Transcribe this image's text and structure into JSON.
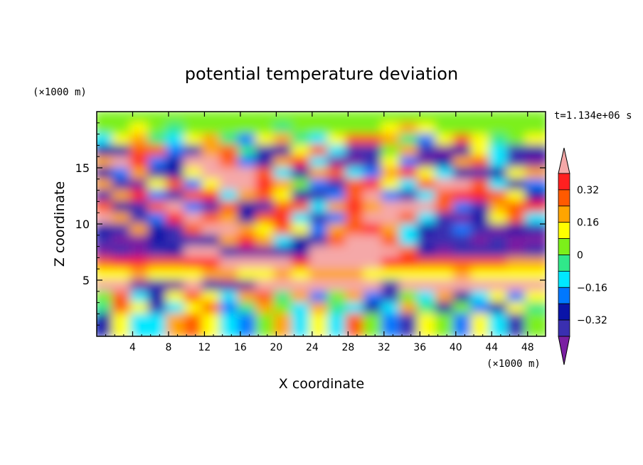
{
  "chart_data": {
    "type": "heatmap",
    "title": "potential temperature deviation",
    "xlabel": "X coordinate",
    "ylabel": "Z coordinate",
    "x_unit": "(×1000 m)",
    "y_unit": "(×1000 m)",
    "time_label": "t=1.134e+06 s",
    "xlim": [
      0,
      50
    ],
    "ylim": [
      0,
      20
    ],
    "x_ticks": [
      4,
      8,
      12,
      16,
      20,
      24,
      28,
      32,
      36,
      40,
      44,
      48
    ],
    "y_ticks": [
      5,
      10,
      15
    ],
    "grid": false,
    "colorbar": {
      "position": "right",
      "levels": [
        -0.4,
        -0.32,
        -0.24,
        -0.16,
        -0.08,
        0,
        0.08,
        0.16,
        0.24,
        0.32,
        0.4
      ],
      "tick_labels": [
        "0.32",
        "0.16",
        "0",
        "−0.16",
        "−0.32"
      ],
      "tick_values": [
        0.32,
        0.16,
        0,
        -0.16,
        -0.32
      ],
      "colors": [
        "#7a1fa2",
        "#3a2fb0",
        "#0a14a8",
        "#0078ff",
        "#00e8ff",
        "#30e88a",
        "#7cf01a",
        "#ffff00",
        "#ffa500",
        "#ff5a00",
        "#ff2020",
        "#f5a8a8"
      ],
      "extend": "both"
    },
    "rows": [
      {
        "z": 19,
        "values": [
          0.05,
          0.05,
          0.04,
          0.06,
          0.03,
          0.02,
          0.05,
          0.06,
          0.04,
          0.05,
          0.02,
          0.03,
          0.05,
          0.06,
          0.04,
          0.05,
          0.03,
          0.02,
          0.04,
          0.05,
          0.06,
          0.05,
          0.03,
          0.04,
          0.05
        ]
      },
      {
        "z": 18,
        "values": [
          0.02,
          0.06,
          0.1,
          0.04,
          -0.02,
          0.01,
          0.04,
          0.07,
          0.03,
          0.01,
          -0.02,
          0.01,
          0.04,
          0.06,
          0.02,
          0.05,
          0.12,
          0.18,
          0.1,
          0.03,
          0.02,
          0.04,
          0.06,
          0.03,
          0.02
        ]
      },
      {
        "z": 17,
        "values": [
          -0.1,
          0.12,
          0.22,
          -0.06,
          -0.16,
          0.14,
          0.2,
          -0.05,
          -0.18,
          0.1,
          0.22,
          -0.04,
          -0.12,
          0.08,
          0.24,
          0.3,
          0.18,
          -0.06,
          -0.2,
          0.12,
          0.26,
          0.14,
          -0.08,
          0.04,
          0.1
        ]
      },
      {
        "z": 16,
        "values": [
          -0.28,
          -0.3,
          0.24,
          0.3,
          -0.22,
          -0.34,
          0.18,
          0.26,
          -0.08,
          -0.36,
          -0.3,
          0.1,
          0.28,
          -0.12,
          -0.4,
          -0.38,
          0.06,
          0.2,
          -0.34,
          -0.42,
          -0.3,
          0.08,
          -0.1,
          -0.36,
          -0.3
        ]
      },
      {
        "z": 15,
        "values": [
          0.16,
          0.44,
          0.34,
          -0.18,
          -0.3,
          0.42,
          0.46,
          0.28,
          -0.2,
          -0.32,
          0.2,
          0.36,
          -0.1,
          -0.42,
          -0.44,
          -0.36,
          0.12,
          -0.24,
          -0.44,
          -0.3,
          0.18,
          0.3,
          -0.16,
          -0.38,
          -0.42
        ]
      },
      {
        "z": 14,
        "values": [
          -0.3,
          -0.22,
          0.18,
          -0.36,
          -0.32,
          0.12,
          0.44,
          0.48,
          0.42,
          0.24,
          -0.14,
          -0.3,
          0.16,
          0.3,
          -0.1,
          -0.2,
          0.22,
          0.34,
          0.1,
          -0.16,
          -0.28,
          -0.34,
          -0.26,
          0.12,
          0.2
        ]
      },
      {
        "z": 13,
        "values": [
          0.2,
          -0.4,
          -0.44,
          0.14,
          0.3,
          -0.18,
          0.1,
          0.42,
          0.46,
          0.36,
          0.2,
          0.04,
          -0.2,
          -0.34,
          0.24,
          0.38,
          0.1,
          -0.12,
          0.3,
          0.44,
          0.46,
          0.3,
          -0.1,
          -0.26,
          -0.2
        ]
      },
      {
        "z": 12,
        "values": [
          -0.34,
          0.22,
          0.34,
          -0.2,
          -0.36,
          0.24,
          0.36,
          -0.12,
          0.2,
          0.3,
          0.08,
          -0.28,
          -0.38,
          -0.2,
          0.28,
          0.4,
          -0.18,
          -0.36,
          -0.1,
          0.24,
          0.32,
          0.36,
          0.28,
          0.1,
          -0.3
        ]
      },
      {
        "z": 11,
        "values": [
          0.3,
          -0.3,
          -0.36,
          0.3,
          0.4,
          -0.22,
          -0.34,
          0.28,
          -0.3,
          -0.36,
          0.26,
          0.3,
          -0.14,
          0.2,
          0.34,
          0.2,
          0.4,
          0.46,
          0.44,
          0.26,
          -0.2,
          -0.34,
          0.18,
          0.3,
          0.34
        ]
      },
      {
        "z": 10,
        "values": [
          0.44,
          0.16,
          -0.34,
          -0.24,
          0.36,
          0.44,
          0.26,
          0.18,
          -0.26,
          0.3,
          0.36,
          -0.12,
          -0.36,
          -0.2,
          0.3,
          0.4,
          0.44,
          0.24,
          -0.16,
          -0.38,
          -0.44,
          -0.3,
          0.1,
          0.26,
          -0.12
        ]
      },
      {
        "z": 9,
        "values": [
          -0.26,
          -0.38,
          0.18,
          -0.28,
          -0.38,
          0.3,
          0.46,
          0.42,
          0.2,
          0.1,
          0.3,
          0.08,
          -0.24,
          0.16,
          0.3,
          0.34,
          0.2,
          -0.1,
          -0.28,
          -0.34,
          -0.2,
          -0.36,
          -0.44,
          -0.3,
          -0.36
        ]
      },
      {
        "z": 8,
        "values": [
          -0.4,
          -0.42,
          -0.44,
          -0.3,
          -0.34,
          -0.4,
          -0.26,
          0.2,
          0.36,
          0.18,
          -0.12,
          -0.3,
          -0.36,
          0.24,
          0.4,
          0.44,
          0.3,
          -0.14,
          -0.34,
          -0.4,
          -0.36,
          -0.44,
          -0.4,
          -0.42,
          -0.44
        ]
      },
      {
        "z": 7,
        "values": [
          -0.44,
          -0.4,
          -0.42,
          -0.36,
          -0.3,
          0.42,
          0.46,
          -0.36,
          -0.42,
          -0.44,
          -0.4,
          -0.3,
          0.44,
          0.48,
          0.48,
          0.46,
          0.44,
          0.3,
          -0.3,
          -0.42,
          -0.38,
          -0.4,
          -0.36,
          -0.42,
          -0.4
        ]
      },
      {
        "z": 6,
        "values": [
          0.3,
          0.32,
          0.34,
          0.3,
          0.28,
          0.34,
          0.36,
          0.4,
          0.42,
          0.44,
          0.4,
          0.38,
          0.46,
          0.48,
          0.44,
          0.42,
          0.36,
          0.32,
          0.3,
          0.28,
          0.3,
          0.26,
          0.24,
          0.22,
          0.2
        ]
      },
      {
        "z": 5,
        "values": [
          0.12,
          0.14,
          0.16,
          0.12,
          0.1,
          0.14,
          0.16,
          0.18,
          0.14,
          0.12,
          0.16,
          0.14,
          0.18,
          0.2,
          0.16,
          0.14,
          0.12,
          0.1,
          0.12,
          0.14,
          0.16,
          0.14,
          0.12,
          0.1,
          0.12
        ]
      },
      {
        "z": 4,
        "values": [
          0.46,
          0.44,
          -0.42,
          -0.4,
          -0.44,
          0.46,
          -0.38,
          -0.42,
          -0.44,
          0.46,
          0.48,
          0.46,
          0.44,
          0.46,
          0.48,
          0.46,
          -0.4,
          0.44,
          0.46,
          0.48,
          0.46,
          0.44,
          0.46,
          0.44,
          0.42
        ]
      },
      {
        "z": 3,
        "values": [
          0.06,
          0.3,
          -0.14,
          -0.3,
          0.1,
          0.24,
          0.14,
          -0.1,
          0.2,
          0.26,
          -0.04,
          0.18,
          -0.18,
          0.06,
          0.2,
          -0.2,
          -0.36,
          0.04,
          -0.1,
          0.22,
          -0.26,
          -0.12,
          0.1,
          -0.18,
          0.08
        ]
      },
      {
        "z": 2,
        "values": [
          -0.06,
          0.24,
          0.1,
          -0.4,
          -0.1,
          0.14,
          0.26,
          -0.2,
          -0.08,
          0.18,
          0.06,
          -0.14,
          0.22,
          -0.06,
          -0.1,
          -0.26,
          -0.12,
          0.2,
          -0.04,
          -0.3,
          0.04,
          -0.22,
          -0.3,
          0.08,
          -0.08
        ]
      },
      {
        "z": 1,
        "values": [
          -0.3,
          0.14,
          -0.1,
          -0.14,
          0.2,
          0.3,
          0.1,
          -0.12,
          -0.22,
          0.04,
          0.18,
          -0.1,
          0.1,
          -0.16,
          0.24,
          0.06,
          -0.2,
          -0.34,
          0.12,
          0.04,
          -0.18,
          0.1,
          -0.14,
          -0.36,
          0.06
        ]
      }
    ]
  }
}
